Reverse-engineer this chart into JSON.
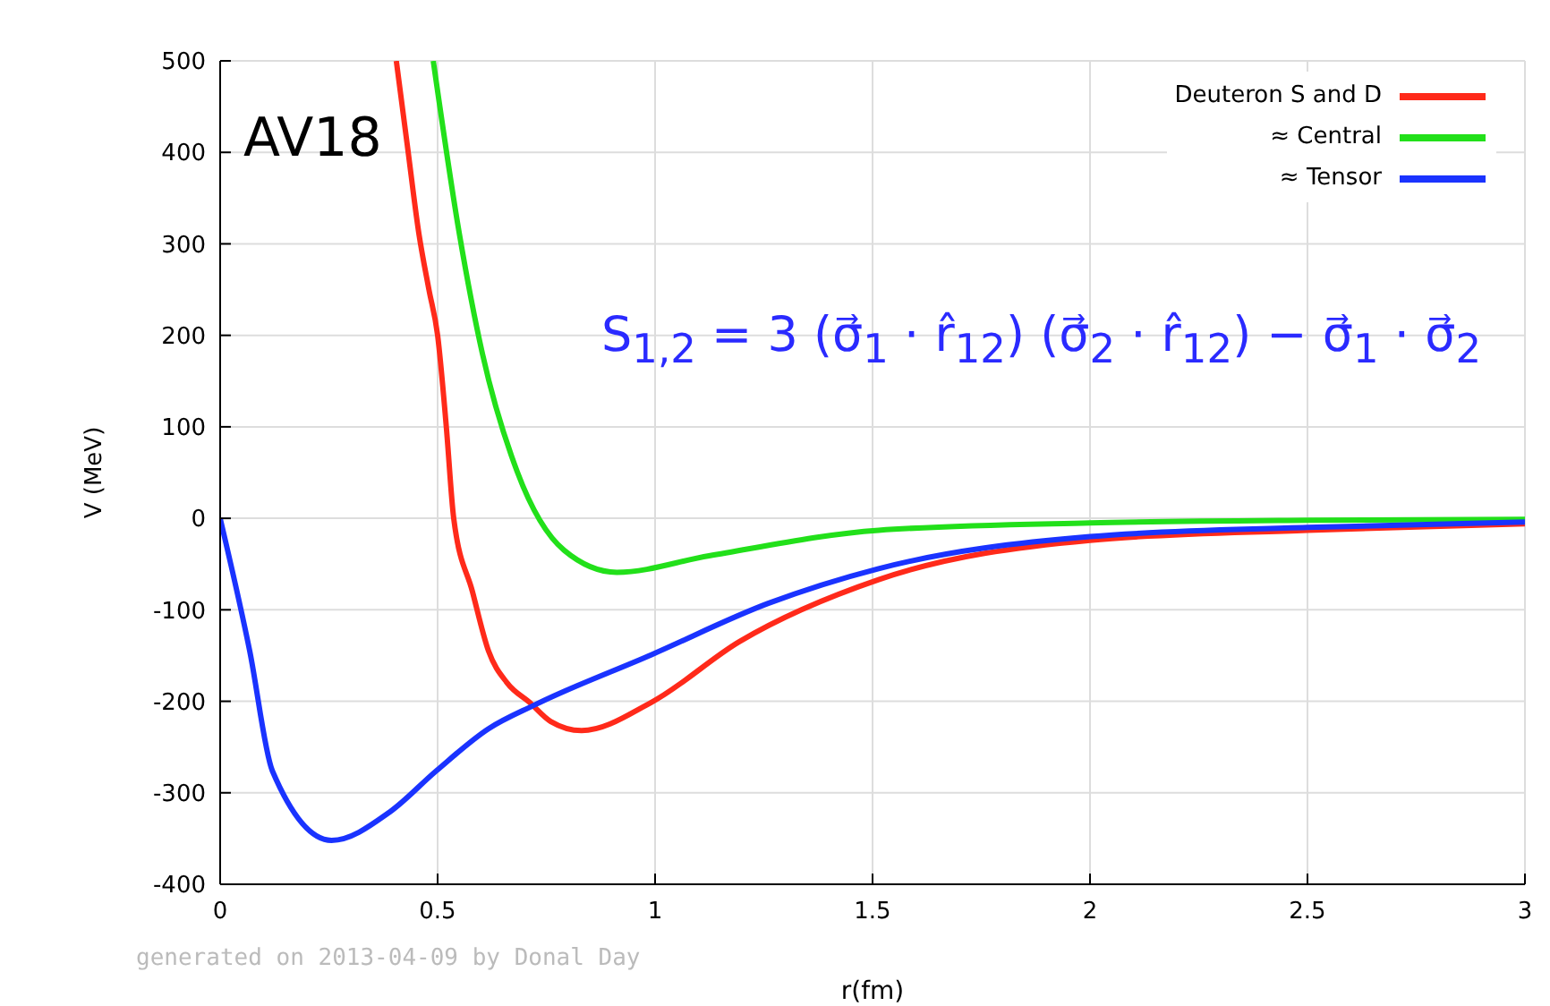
{
  "chart_data": {
    "type": "line",
    "xlabel": "r(fm)",
    "ylabel": "V (MeV)",
    "xlim": [
      0,
      3
    ],
    "xticks": [
      0,
      0.5,
      1,
      1.5,
      2,
      2.5,
      3
    ],
    "ylim": [
      -400,
      500
    ],
    "yticks": [
      -400,
      -300,
      -200,
      -100,
      0,
      100,
      200,
      300,
      400,
      500
    ],
    "grid": true,
    "legend": "top right",
    "marker": "none",
    "line_style": "solid",
    "annotations": [
      "AV18",
      "S$_{1,2}$ = 3 (σ⃗$_{1}$ · r̂$_{12}$) (σ⃗$_{2}$ · r̂$_{12}$) − σ⃗$_{1}$ · σ⃗$_{2}$",
      "generated on 2013-04-09 by Donal Day"
    ],
    "series": [
      {
        "name": "Deuteron S and D",
        "color": "#ff2a1a",
        "x": [
          0.405,
          0.43,
          0.457,
          0.48,
          0.5,
          0.52,
          0.537,
          0.58,
          0.617,
          0.66,
          0.711,
          0.76,
          0.831,
          0.992,
          1.193,
          1.514,
          2,
          2.5,
          3
        ],
        "values": [
          500,
          409,
          311,
          250,
          200,
          100,
          0,
          -80,
          -145,
          -180,
          -201,
          -222,
          -232,
          -201,
          -135,
          -67,
          -24,
          -13,
          -6
        ]
      },
      {
        "name": "≈ Central",
        "color": "#22e01a",
        "x": [
          0.49,
          0.55,
          0.603,
          0.683,
          0.791,
          0.912,
          1.124,
          1.514,
          2,
          2.5,
          3
        ],
        "values": [
          500,
          311,
          180,
          51,
          -35,
          -59,
          -41,
          -13,
          -5,
          -2,
          -1
        ]
      },
      {
        "name": "≈ Tensor",
        "color": "#1a33ff",
        "x": [
          0,
          0.068,
          0.12,
          0.256,
          0.39,
          0.497,
          0.617,
          0.723,
          0.992,
          1.26,
          1.514,
          2,
          2.5,
          3
        ],
        "values": [
          0,
          -145,
          -276,
          -352,
          -321,
          -276,
          -230,
          -204,
          -149,
          -93,
          -55,
          -20,
          -10,
          -4
        ]
      }
    ]
  }
}
